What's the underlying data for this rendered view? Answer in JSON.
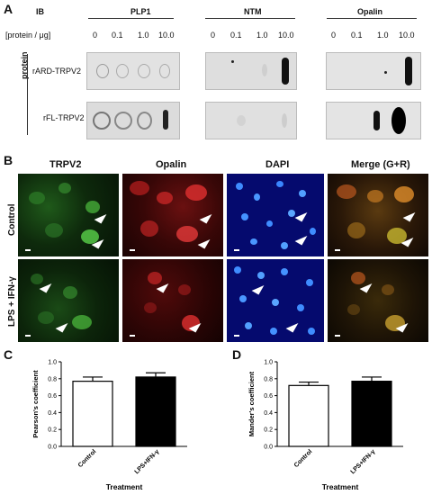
{
  "panelA": {
    "letter": "A",
    "ib_label": "IB",
    "protein_axis_label": "[protein / μg]",
    "row_group_label": "protein",
    "blots": [
      {
        "name": "PLP1",
        "concentrations": [
          "0",
          "0.1",
          "1.0",
          "10.0"
        ]
      },
      {
        "name": "NTM",
        "concentrations": [
          "0",
          "0.1",
          "1.0",
          "10.0"
        ]
      },
      {
        "name": "Opalin",
        "concentrations": [
          "0",
          "0.1",
          "1.0",
          "10.0"
        ]
      }
    ],
    "rows": [
      "rARD-TRPV2",
      "rFL-TRPV2"
    ]
  },
  "panelB": {
    "letter": "B",
    "columns": [
      "TRPV2",
      "Opalin",
      "DAPI",
      "Merge (G+R)"
    ],
    "column_colors": [
      "#00e000",
      "#ff2a2a",
      "#3a7bff",
      "#ffcc00"
    ],
    "rows": [
      "Control",
      "LPS + IFN-γ"
    ]
  },
  "chart_data": [
    {
      "type": "bar",
      "panel": "C",
      "categories": [
        "Control",
        "LPS+IFN-γ"
      ],
      "values": [
        0.77,
        0.82
      ],
      "errors": [
        0.05,
        0.05
      ],
      "bar_colors": [
        "#ffffff",
        "#000000"
      ],
      "ylabel": "Pearson's coefficient",
      "xlabel": "Treatment",
      "ylim": [
        0,
        1.0
      ],
      "yticks": [
        "0.0",
        "0.2",
        "0.4",
        "0.6",
        "0.8",
        "1.0"
      ]
    },
    {
      "type": "bar",
      "panel": "D",
      "categories": [
        "Control",
        "LPS+IFN-γ"
      ],
      "values": [
        0.72,
        0.77
      ],
      "errors": [
        0.04,
        0.05
      ],
      "bar_colors": [
        "#ffffff",
        "#000000"
      ],
      "ylabel": "Mander's coefficient",
      "xlabel": "Treatment",
      "ylim": [
        0,
        1.0
      ],
      "yticks": [
        "0.0",
        "0.2",
        "0.4",
        "0.6",
        "0.8",
        "1.0"
      ]
    }
  ]
}
